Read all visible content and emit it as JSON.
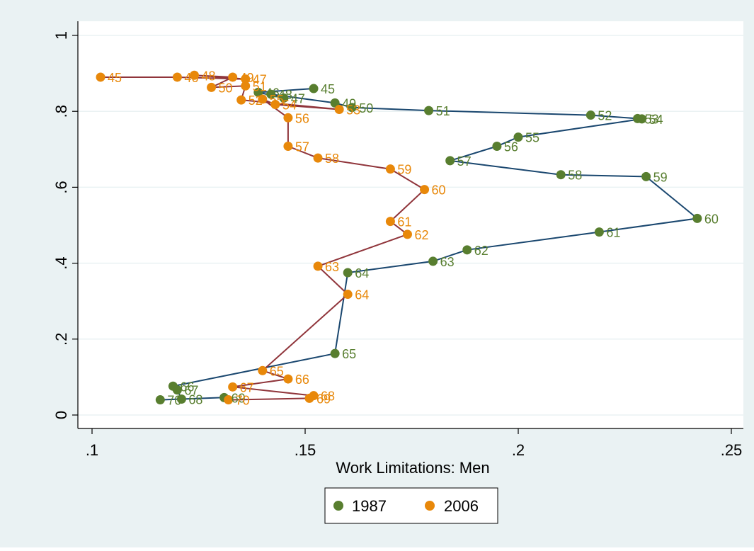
{
  "chart_data": {
    "type": "scatter",
    "title": "",
    "xlabel": "Work Limitations: Men",
    "ylabel": "",
    "xlim": [
      0.1,
      0.25
    ],
    "ylim": [
      0,
      1
    ],
    "xticks": [
      0.1,
      0.15,
      0.2,
      0.25
    ],
    "xtick_labels": [
      ".1",
      ".15",
      ".2",
      ".25"
    ],
    "yticks": [
      0,
      0.2,
      0.4,
      0.6,
      0.8,
      1
    ],
    "ytick_labels": [
      "0",
      ".2",
      ".4",
      ".6",
      ".8",
      "1"
    ],
    "grid": "horizontal",
    "legend_position": "bottom",
    "colors": {
      "background": "#eaf2f3",
      "plot_bg": "#ffffff",
      "grid": "#eaf2f3"
    },
    "series": [
      {
        "name": "1987",
        "marker_color": "#587e2f",
        "line_color": "#1a476f",
        "label_color": "#587e2f",
        "points": [
          {
            "age": "45",
            "x": 0.152,
            "y": 0.86
          },
          {
            "age": "46",
            "x": 0.139,
            "y": 0.85
          },
          {
            "age": "47",
            "x": 0.145,
            "y": 0.835
          },
          {
            "age": "48",
            "x": 0.142,
            "y": 0.845
          },
          {
            "age": "49",
            "x": 0.157,
            "y": 0.822
          },
          {
            "age": "50",
            "x": 0.161,
            "y": 0.81
          },
          {
            "age": "51",
            "x": 0.179,
            "y": 0.802
          },
          {
            "age": "52",
            "x": 0.217,
            "y": 0.79
          },
          {
            "age": "53",
            "x": 0.228,
            "y": 0.781
          },
          {
            "age": "54",
            "x": 0.229,
            "y": 0.78
          },
          {
            "age": "55",
            "x": 0.2,
            "y": 0.732
          },
          {
            "age": "56",
            "x": 0.195,
            "y": 0.708
          },
          {
            "age": "57",
            "x": 0.184,
            "y": 0.67
          },
          {
            "age": "58",
            "x": 0.21,
            "y": 0.633
          },
          {
            "age": "59",
            "x": 0.23,
            "y": 0.628
          },
          {
            "age": "60",
            "x": 0.242,
            "y": 0.518
          },
          {
            "age": "61",
            "x": 0.219,
            "y": 0.482
          },
          {
            "age": "62",
            "x": 0.188,
            "y": 0.435
          },
          {
            "age": "63",
            "x": 0.18,
            "y": 0.405
          },
          {
            "age": "64",
            "x": 0.16,
            "y": 0.375
          },
          {
            "age": "65",
            "x": 0.157,
            "y": 0.162
          },
          {
            "age": "66",
            "x": 0.119,
            "y": 0.076
          },
          {
            "age": "67",
            "x": 0.12,
            "y": 0.066
          },
          {
            "age": "68",
            "x": 0.121,
            "y": 0.042
          },
          {
            "age": "69",
            "x": 0.131,
            "y": 0.046
          },
          {
            "age": "70",
            "x": 0.116,
            "y": 0.04
          }
        ]
      },
      {
        "name": "2006",
        "marker_color": "#e8880a",
        "line_color": "#90353b",
        "label_color": "#e8880a",
        "points": [
          {
            "age": "45",
            "x": 0.102,
            "y": 0.89
          },
          {
            "age": "46",
            "x": 0.12,
            "y": 0.89
          },
          {
            "age": "47",
            "x": 0.136,
            "y": 0.885
          },
          {
            "age": "48",
            "x": 0.124,
            "y": 0.895
          },
          {
            "age": "49",
            "x": 0.133,
            "y": 0.89
          },
          {
            "age": "50",
            "x": 0.128,
            "y": 0.863
          },
          {
            "age": "51",
            "x": 0.136,
            "y": 0.867
          },
          {
            "age": "52",
            "x": 0.135,
            "y": 0.83
          },
          {
            "age": "53",
            "x": 0.158,
            "y": 0.805
          },
          {
            "age": "54",
            "x": 0.143,
            "y": 0.818
          },
          {
            "age": "55",
            "x": 0.14,
            "y": 0.832
          },
          {
            "age": "56",
            "x": 0.146,
            "y": 0.783
          },
          {
            "age": "57",
            "x": 0.146,
            "y": 0.708
          },
          {
            "age": "58",
            "x": 0.153,
            "y": 0.677
          },
          {
            "age": "59",
            "x": 0.17,
            "y": 0.648
          },
          {
            "age": "60",
            "x": 0.178,
            "y": 0.594
          },
          {
            "age": "61",
            "x": 0.17,
            "y": 0.51
          },
          {
            "age": "62",
            "x": 0.174,
            "y": 0.476
          },
          {
            "age": "63",
            "x": 0.153,
            "y": 0.392
          },
          {
            "age": "64",
            "x": 0.16,
            "y": 0.318
          },
          {
            "age": "65",
            "x": 0.14,
            "y": 0.117
          },
          {
            "age": "66",
            "x": 0.146,
            "y": 0.095
          },
          {
            "age": "67",
            "x": 0.133,
            "y": 0.074
          },
          {
            "age": "68",
            "x": 0.152,
            "y": 0.051
          },
          {
            "age": "69",
            "x": 0.151,
            "y": 0.044
          },
          {
            "age": "70",
            "x": 0.132,
            "y": 0.04
          }
        ]
      }
    ]
  }
}
